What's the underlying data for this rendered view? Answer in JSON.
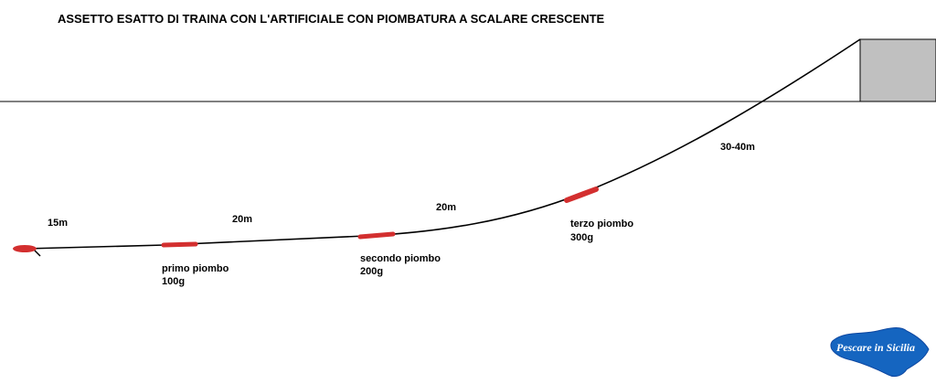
{
  "title": "ASSETTO ESATTO DI TRAINA CON L'ARTIFICIALE  CON PIOMBATURA  A SCALARE CRESCENTE",
  "segments": {
    "s1": "15m",
    "s2": "20m",
    "s3": "20m",
    "s4": "30-40m"
  },
  "weights": {
    "w1": {
      "name": "primo piombo",
      "value": "100g"
    },
    "w2": {
      "name": "secondo piombo",
      "value": "200g"
    },
    "w3": {
      "name": "terzo piombo",
      "value": "300g"
    }
  },
  "logo": "Pescare in Sicilia",
  "colors": {
    "line": "#000000",
    "weight": "#d32f2f",
    "boat": "#c0c0c0",
    "logo": "#1565c0"
  }
}
